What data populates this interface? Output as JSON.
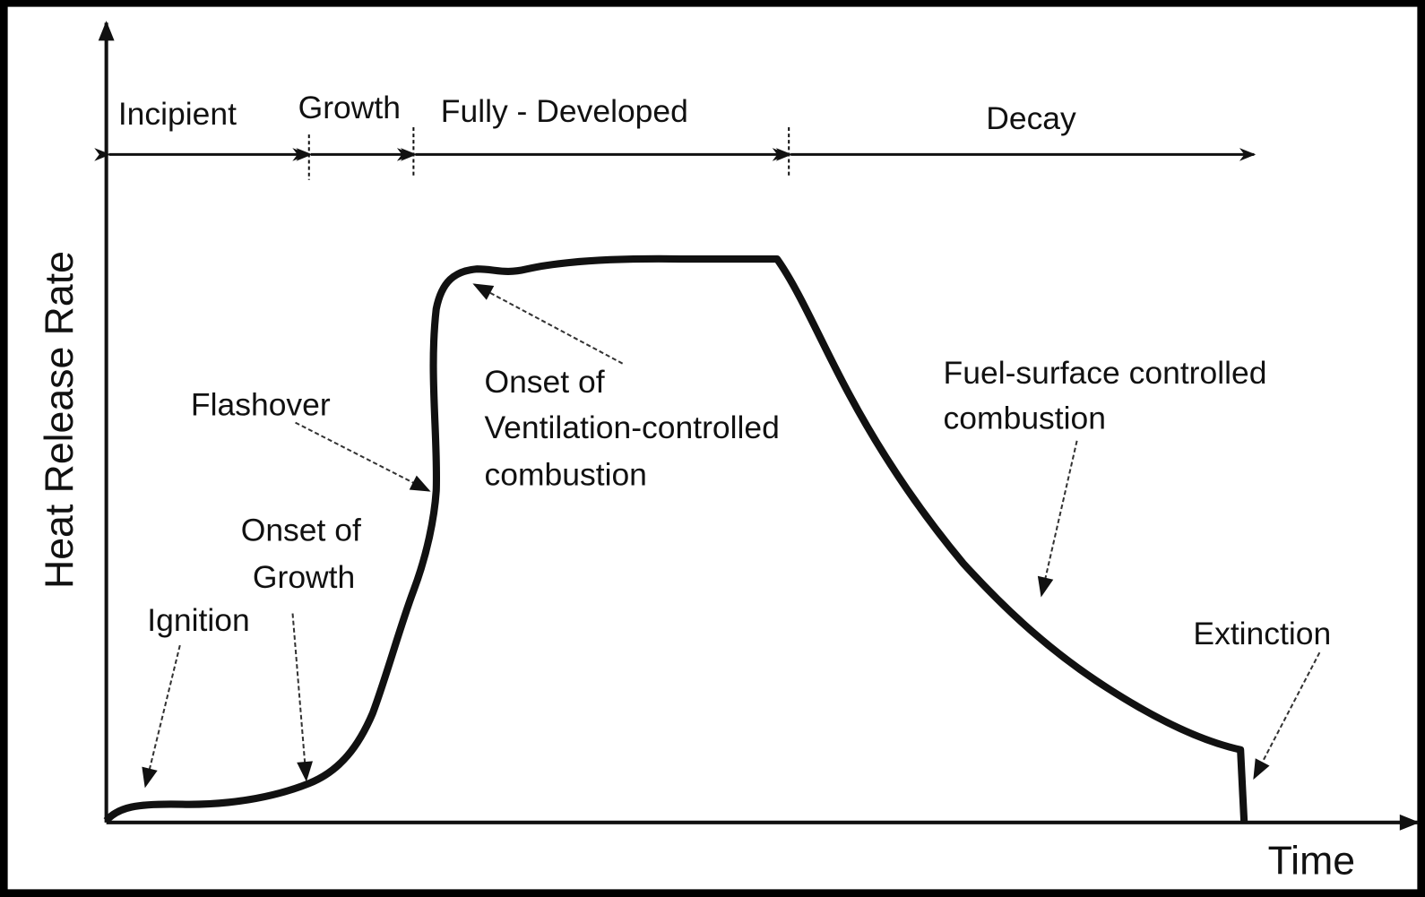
{
  "axes": {
    "y_label": "Heat Release Rate",
    "x_label": "Time"
  },
  "phases": [
    "Incipient",
    "Growth",
    "Fully - Developed",
    "Decay"
  ],
  "annotations": {
    "ignition": "Ignition",
    "onset_of_growth": [
      "Onset of",
      "Growth"
    ],
    "flashover": "Flashover",
    "onset_of_ventilation": [
      "Onset of",
      "Ventilation-controlled",
      "combustion"
    ],
    "fuel_surface": [
      "Fuel-surface controlled",
      "combustion"
    ],
    "extinction": "Extinction"
  }
}
